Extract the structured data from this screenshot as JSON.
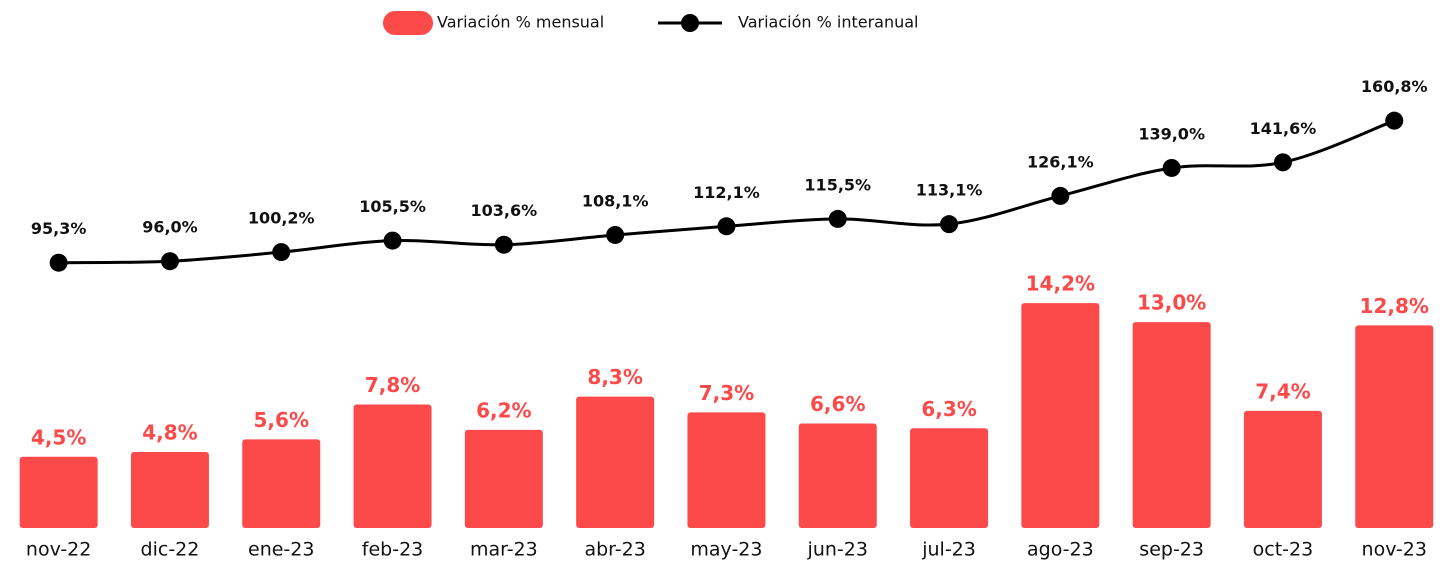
{
  "chart_data": {
    "type": "bar-line",
    "categories": [
      "nov-22",
      "dic-22",
      "ene-23",
      "feb-23",
      "mar-23",
      "abr-23",
      "may-23",
      "jun-23",
      "jul-23",
      "ago-23",
      "sep-23",
      "oct-23",
      "nov-23"
    ],
    "series": [
      {
        "name": "Variación % mensual",
        "type": "bar",
        "color": "#fc4a4a",
        "values": [
          4.5,
          4.8,
          5.6,
          7.8,
          6.2,
          8.3,
          7.3,
          6.6,
          6.3,
          14.2,
          13.0,
          7.4,
          12.8
        ],
        "value_labels": [
          "4,5%",
          "4,8%",
          "5,6%",
          "7,8%",
          "6,2%",
          "8,3%",
          "7,3%",
          "6,6%",
          "6,3%",
          "14,2%",
          "13,0%",
          "7,4%",
          "12,8%"
        ]
      },
      {
        "name": "Variación % interanual",
        "type": "line",
        "color": "#000000",
        "axis": "y2",
        "values": [
          95.3,
          96.0,
          100.2,
          105.5,
          103.6,
          108.1,
          112.1,
          115.5,
          113.1,
          126.1,
          139.0,
          141.6,
          160.8
        ],
        "value_labels": [
          "95,3%",
          "96,0%",
          "100,2%",
          "105,5%",
          "103,6%",
          "108,1%",
          "112,1%",
          "115,5%",
          "113,1%",
          "126,1%",
          "139,0%",
          "141,6%",
          "160,8%"
        ]
      }
    ],
    "ylim": [
      0,
      30
    ],
    "y2lim": [
      -27,
      192
    ],
    "legend": "top"
  }
}
